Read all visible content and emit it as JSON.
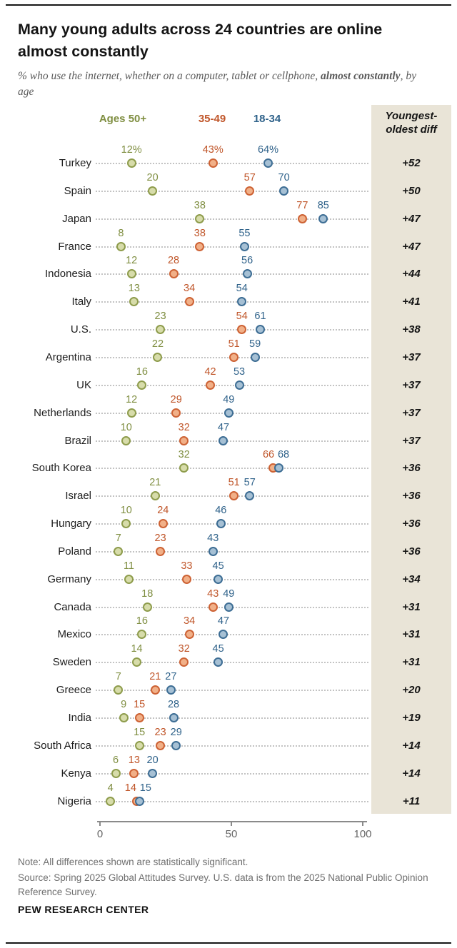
{
  "header": {
    "title": "Many young adults across 24 countries are online almost constantly",
    "subtitle_pre": "% who use the internet, whether on a computer, tablet or cellphone, ",
    "subtitle_bold": "almost constantly",
    "subtitle_post": ", by age"
  },
  "legend": {
    "diff_header": "Youngest-oldest diff"
  },
  "chart_data": {
    "type": "dot-plot",
    "title": "Many young adults across 24 countries are online almost constantly",
    "categories": [
      "Turkey",
      "Spain",
      "Japan",
      "France",
      "Indonesia",
      "Italy",
      "U.S.",
      "Argentina",
      "UK",
      "Netherlands",
      "Brazil",
      "South Korea",
      "Israel",
      "Hungary",
      "Poland",
      "Germany",
      "Canada",
      "Mexico",
      "Sweden",
      "Greece",
      "India",
      "South Africa",
      "Kenya",
      "Nigeria"
    ],
    "series": [
      {
        "name": "Ages 50+",
        "slug": "age-50plus",
        "text_color": "#7f8e41",
        "dot_stroke": "#8e9c4c",
        "dot_fill": "#d7dcaa",
        "values": [
          12,
          20,
          38,
          8,
          12,
          13,
          23,
          22,
          16,
          12,
          10,
          32,
          21,
          10,
          7,
          11,
          18,
          16,
          14,
          7,
          9,
          15,
          6,
          4
        ]
      },
      {
        "name": "35-49",
        "slug": "age-35-49",
        "text_color": "#c0562a",
        "dot_stroke": "#cd6234",
        "dot_fill": "#f1b088",
        "values": [
          43,
          57,
          77,
          38,
          28,
          34,
          54,
          51,
          42,
          29,
          32,
          66,
          51,
          24,
          23,
          33,
          43,
          34,
          32,
          21,
          15,
          23,
          13,
          14
        ]
      },
      {
        "name": "18-34",
        "slug": "age-18-34",
        "text_color": "#2f628a",
        "dot_stroke": "#3d6d94",
        "dot_fill": "#a6c0d4",
        "values": [
          64,
          70,
          85,
          55,
          56,
          54,
          61,
          59,
          53,
          49,
          47,
          68,
          57,
          46,
          43,
          45,
          49,
          47,
          45,
          27,
          28,
          29,
          20,
          15
        ]
      }
    ],
    "diff": [
      "+52",
      "+50",
      "+47",
      "+47",
      "+44",
      "+41",
      "+38",
      "+37",
      "+37",
      "+37",
      "+37",
      "+36",
      "+36",
      "+36",
      "+36",
      "+34",
      "+31",
      "+31",
      "+31",
      "+20",
      "+19",
      "+14",
      "+14",
      "+11"
    ],
    "first_row_percent_suffix": true,
    "xlim": [
      0,
      100
    ],
    "x_ticks": [
      0,
      50,
      100
    ],
    "grid": "dotted-row-leaders",
    "legend_position": "top",
    "diff_color": "#141414",
    "diff_band_color": "#e9e4d7"
  },
  "footer": {
    "note": "Note: All differences shown are statistically significant.",
    "source": "Source: Spring 2025 Global Attitudes Survey. U.S. data is from the 2025 National Public Opinion Reference Survey.",
    "brand": "PEW RESEARCH CENTER"
  }
}
